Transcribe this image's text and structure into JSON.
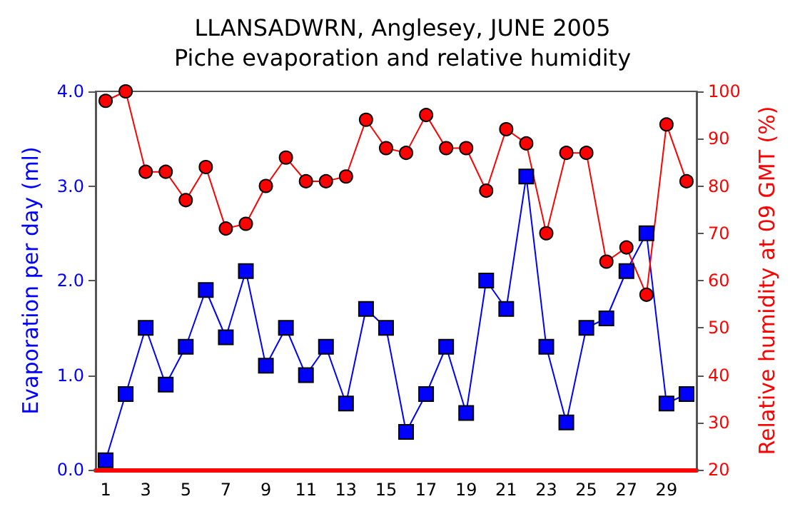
{
  "chart_data": {
    "type": "line",
    "title": "LLANSADWRN, Anglesey, JUNE 2005\nPiche evaporation and relative humidity",
    "xlabel": null,
    "ylabel": "Evaporation per day (ml)",
    "y2label": "Relative humidity at 09 GMT (%)",
    "x": [
      1,
      2,
      3,
      4,
      5,
      6,
      7,
      8,
      9,
      10,
      11,
      12,
      13,
      14,
      15,
      16,
      17,
      18,
      19,
      20,
      21,
      22,
      23,
      24,
      25,
      26,
      27,
      28,
      29,
      30
    ],
    "xlim": [
      0.5,
      30.5
    ],
    "xticks": [
      1,
      3,
      5,
      7,
      9,
      11,
      13,
      15,
      17,
      19,
      21,
      23,
      25,
      27,
      29
    ],
    "series": [
      {
        "color": "#0000ff",
        "marker": "square",
        "values": [
          0.1,
          0.8,
          1.5,
          0.9,
          1.3,
          1.9,
          1.4,
          2.1,
          1.1,
          1.5,
          1.0,
          1.3,
          0.7,
          1.7,
          1.5,
          0.4,
          0.8,
          1.3,
          0.6,
          2.0,
          1.7,
          3.1,
          1.3,
          0.5,
          1.5,
          1.6,
          2.1,
          2.5,
          0.7,
          0.8
        ]
      },
      {
        "color": "#ff0000",
        "marker": "circle",
        "axis": "y2",
        "values": [
          98,
          100,
          83,
          83,
          77,
          84,
          71,
          72,
          80,
          86,
          81,
          81,
          82,
          94,
          88,
          87,
          95,
          88,
          88,
          79,
          92,
          89,
          70,
          87,
          87,
          64,
          67,
          57,
          93,
          81
        ]
      }
    ],
    "ylim": [
      0,
      4
    ],
    "yticks": [
      {
        "value": 0,
        "label": "0.0"
      },
      {
        "value": 1,
        "label": "1.0"
      },
      {
        "value": 2,
        "label": "2.0"
      },
      {
        "value": 3,
        "label": "3.0"
      },
      {
        "value": 4,
        "label": "4.0"
      }
    ],
    "y2lim": [
      20,
      100
    ],
    "y2ticks": [
      20,
      30,
      40,
      50,
      60,
      70,
      80,
      90,
      100
    ],
    "grid": false,
    "line_style": "solid"
  }
}
